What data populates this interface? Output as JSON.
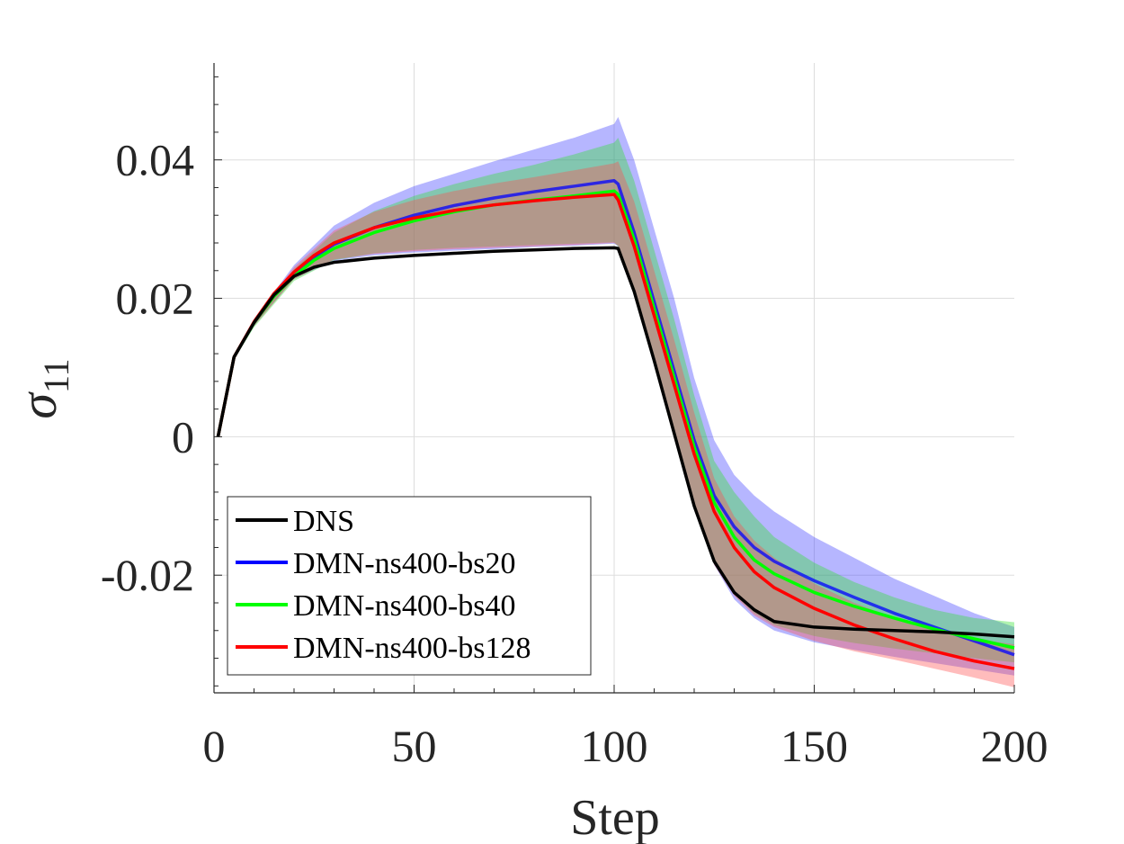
{
  "chart_data": {
    "type": "line",
    "title": "",
    "xlabel": "Step",
    "ylabel_symbol": "σ",
    "ylabel_subscript": "11",
    "xlim": [
      0,
      200
    ],
    "ylim": [
      -0.037,
      0.054
    ],
    "xticks": [
      0,
      50,
      100,
      150,
      200
    ],
    "xtick_labels": [
      "0",
      "50",
      "100",
      "150",
      "200"
    ],
    "yticks": [
      -0.02,
      0,
      0.02,
      0.04
    ],
    "ytick_labels": [
      "-0.02",
      "0",
      "0.02",
      "0.04"
    ],
    "grid": true,
    "legend_position": "bottom-left",
    "series": [
      {
        "name": "DNS",
        "color": "#000000",
        "x": [
          1,
          5,
          10,
          15,
          20,
          25,
          30,
          40,
          50,
          60,
          70,
          80,
          90,
          100,
          101,
          105,
          110,
          115,
          120,
          125,
          130,
          135,
          140,
          150,
          160,
          170,
          180,
          190,
          200
        ],
        "y": [
          0,
          0.0115,
          0.0165,
          0.0205,
          0.0232,
          0.0245,
          0.0252,
          0.0258,
          0.0262,
          0.0265,
          0.0268,
          0.027,
          0.0272,
          0.0273,
          0.0272,
          0.021,
          0.011,
          0.0005,
          -0.01,
          -0.018,
          -0.0225,
          -0.025,
          -0.0267,
          -0.0275,
          -0.0278,
          -0.028,
          -0.0282,
          -0.0285,
          -0.0289
        ]
      },
      {
        "name": "DMN-ns400-bs20",
        "color": "#0000ff",
        "x": [
          1,
          5,
          10,
          15,
          20,
          25,
          30,
          40,
          50,
          60,
          70,
          80,
          90,
          100,
          101,
          105,
          110,
          115,
          120,
          125,
          130,
          135,
          140,
          150,
          160,
          170,
          180,
          190,
          200
        ],
        "y": [
          0,
          0.0115,
          0.0165,
          0.0205,
          0.0235,
          0.026,
          0.0278,
          0.0302,
          0.032,
          0.0334,
          0.0345,
          0.0354,
          0.0362,
          0.037,
          0.0365,
          0.0295,
          0.0195,
          0.0095,
          -0.0005,
          -0.0085,
          -0.013,
          -0.016,
          -0.018,
          -0.0208,
          -0.0232,
          -0.0255,
          -0.0275,
          -0.0295,
          -0.0315
        ]
      },
      {
        "name": "DMN-ns400-bs40",
        "color": "#00ff00",
        "x": [
          1,
          5,
          10,
          15,
          20,
          25,
          30,
          40,
          50,
          60,
          70,
          80,
          90,
          100,
          101,
          105,
          110,
          115,
          120,
          125,
          130,
          135,
          140,
          150,
          160,
          170,
          180,
          190,
          200
        ],
        "y": [
          0,
          0.0115,
          0.0165,
          0.0203,
          0.0232,
          0.0255,
          0.0272,
          0.0295,
          0.0312,
          0.0325,
          0.0335,
          0.0342,
          0.0348,
          0.0355,
          0.035,
          0.0285,
          0.0185,
          0.0085,
          -0.0015,
          -0.0095,
          -0.0145,
          -0.0178,
          -0.0198,
          -0.0225,
          -0.0245,
          -0.0262,
          -0.0278,
          -0.0292,
          -0.0305
        ]
      },
      {
        "name": "DMN-ns400-bs128",
        "color": "#ff0000",
        "x": [
          1,
          5,
          10,
          15,
          20,
          25,
          30,
          40,
          50,
          60,
          70,
          80,
          90,
          100,
          101,
          105,
          110,
          115,
          120,
          125,
          130,
          135,
          140,
          150,
          160,
          170,
          180,
          190,
          200
        ],
        "y": [
          0,
          0.0115,
          0.0166,
          0.0207,
          0.0238,
          0.0262,
          0.028,
          0.0302,
          0.0316,
          0.0327,
          0.0335,
          0.0341,
          0.0346,
          0.035,
          0.0342,
          0.0275,
          0.0175,
          0.0075,
          -0.0025,
          -0.0108,
          -0.016,
          -0.0195,
          -0.0218,
          -0.0248,
          -0.0272,
          -0.0292,
          -0.031,
          -0.0324,
          -0.0335
        ]
      }
    ],
    "bands": [
      {
        "name": "DMN-ns400-bs20 band",
        "color": "#4040ff",
        "x": [
          1,
          5,
          10,
          20,
          30,
          40,
          50,
          60,
          70,
          80,
          90,
          100,
          101,
          105,
          110,
          115,
          120,
          125,
          130,
          135,
          140,
          150,
          160,
          170,
          180,
          190,
          200
        ],
        "upper": [
          0,
          0.0115,
          0.017,
          0.0248,
          0.0305,
          0.0338,
          0.0362,
          0.038,
          0.0398,
          0.0415,
          0.0432,
          0.0452,
          0.0462,
          0.04,
          0.03,
          0.02,
          0.0085,
          -0.0005,
          -0.0055,
          -0.0085,
          -0.0108,
          -0.0145,
          -0.0175,
          -0.0205,
          -0.023,
          -0.0255,
          -0.0275
        ],
        "lower": [
          0,
          0.0112,
          0.016,
          0.0228,
          0.0254,
          0.0262,
          0.0266,
          0.0269,
          0.0271,
          0.0274,
          0.0276,
          0.0279,
          0.0275,
          0.021,
          0.011,
          0.0005,
          -0.01,
          -0.0185,
          -0.0235,
          -0.0262,
          -0.028,
          -0.0297,
          -0.0308,
          -0.0318,
          -0.0327,
          -0.0336,
          -0.0345
        ]
      },
      {
        "name": "DMN-ns400-bs40 band",
        "color": "#30e030",
        "x": [
          1,
          5,
          10,
          20,
          30,
          40,
          50,
          60,
          70,
          80,
          90,
          100,
          101,
          105,
          110,
          115,
          120,
          125,
          130,
          135,
          140,
          150,
          160,
          170,
          180,
          190,
          200
        ],
        "upper": [
          0,
          0.0115,
          0.0168,
          0.0242,
          0.0295,
          0.0326,
          0.0348,
          0.0365,
          0.038,
          0.0393,
          0.0408,
          0.0425,
          0.0432,
          0.037,
          0.027,
          0.017,
          0.006,
          -0.0035,
          -0.008,
          -0.0115,
          -0.0145,
          -0.0182,
          -0.021,
          -0.0232,
          -0.025,
          -0.0262,
          -0.0268
        ],
        "lower": [
          0,
          0.0112,
          0.0158,
          0.0225,
          0.0255,
          0.0265,
          0.027,
          0.0273,
          0.0275,
          0.0277,
          0.0279,
          0.0281,
          0.0275,
          0.021,
          0.011,
          0.0005,
          -0.01,
          -0.0182,
          -0.0228,
          -0.0255,
          -0.0272,
          -0.0288,
          -0.0298,
          -0.0306,
          -0.0313,
          -0.032,
          -0.0326
        ]
      },
      {
        "name": "DMN-ns400-bs128 band",
        "color": "#ff5050",
        "x": [
          1,
          5,
          10,
          20,
          30,
          40,
          50,
          60,
          70,
          80,
          90,
          100,
          101,
          105,
          110,
          115,
          120,
          125,
          130,
          135,
          140,
          150,
          160,
          170,
          180,
          190,
          200
        ],
        "upper": [
          0,
          0.0115,
          0.017,
          0.0245,
          0.0298,
          0.0325,
          0.0342,
          0.0355,
          0.0366,
          0.0375,
          0.0385,
          0.0395,
          0.0398,
          0.034,
          0.024,
          0.014,
          0.0035,
          -0.006,
          -0.0115,
          -0.015,
          -0.0175,
          -0.0212,
          -0.024,
          -0.0262,
          -0.028,
          -0.0292,
          -0.03
        ],
        "lower": [
          0,
          0.0112,
          0.016,
          0.0228,
          0.0256,
          0.0264,
          0.0268,
          0.0271,
          0.0273,
          0.0275,
          0.0277,
          0.028,
          0.0276,
          0.021,
          0.011,
          0.0005,
          -0.01,
          -0.0185,
          -0.023,
          -0.0258,
          -0.0275,
          -0.0295,
          -0.031,
          -0.0322,
          -0.0335,
          -0.0348,
          -0.0362
        ]
      }
    ]
  }
}
